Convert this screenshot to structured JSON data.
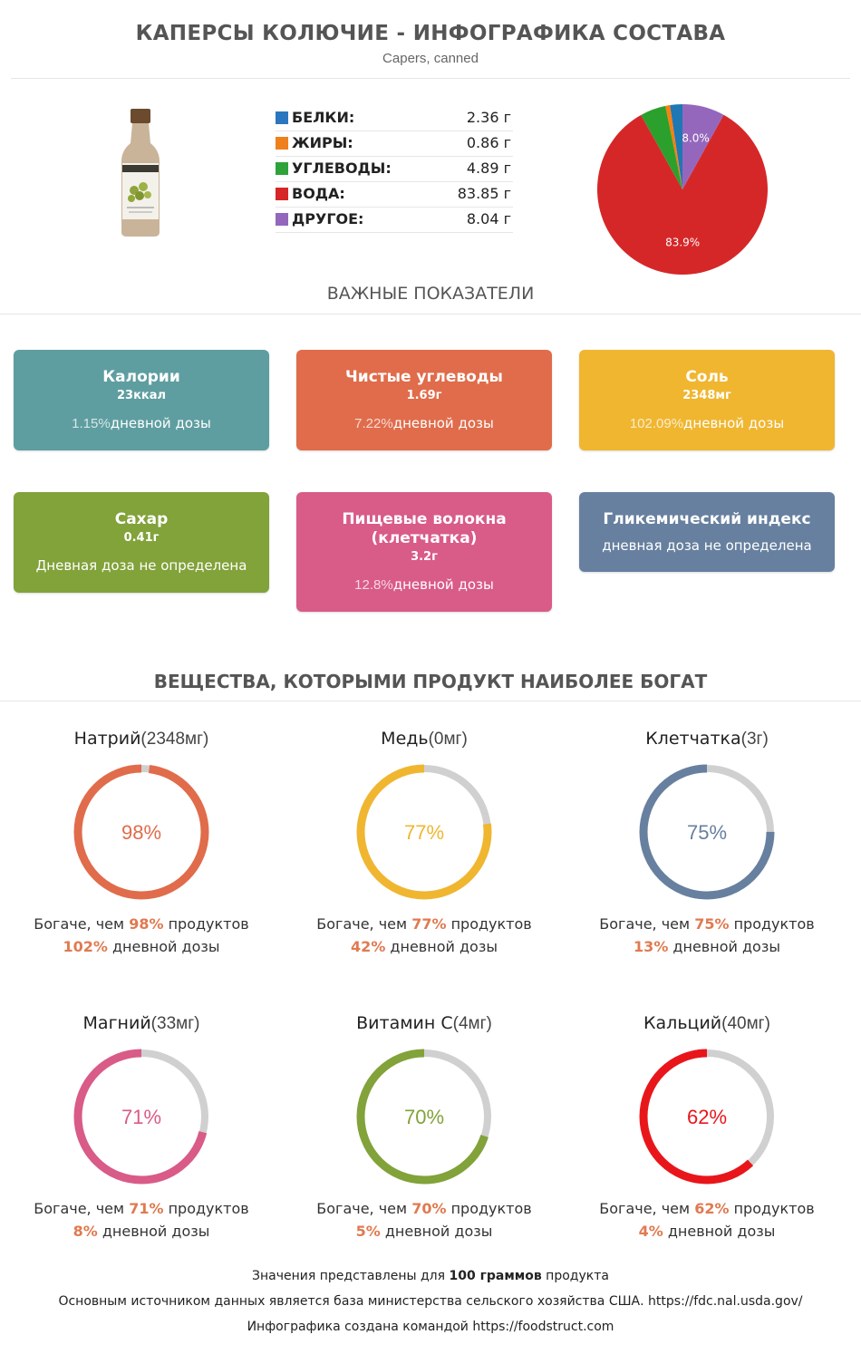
{
  "header": {
    "title": "КАПЕРСЫ КОЛЮЧИЕ - ИНФОГРАФИКА СОСТАВА",
    "subtitle": "Capers, canned"
  },
  "macros": [
    {
      "name": "БЕЛКИ:",
      "value": "2.36 г",
      "color": "#2a77c0"
    },
    {
      "name": "ЖИРЫ:",
      "value": "0.86 г",
      "color": "#f07f1e"
    },
    {
      "name": "УГЛЕВОДЫ:",
      "value": "4.89 г",
      "color": "#2ea33a"
    },
    {
      "name": "ВОДА:",
      "value": "83.85 г",
      "color": "#d62628"
    },
    {
      "name": "ДРУГОЕ:",
      "value": "8.04 г",
      "color": "#9467bd"
    }
  ],
  "chart_data": [
    {
      "type": "pie",
      "categories": [
        "БЕЛКИ",
        "ЖИРЫ",
        "УГЛЕВОДЫ",
        "ВОДА",
        "ДРУГОЕ"
      ],
      "values": [
        2.36,
        0.86,
        4.89,
        83.85,
        8.04
      ],
      "colors": [
        "#1f77b4",
        "#ff7f0e",
        "#2ca02c",
        "#d62728",
        "#9467bd"
      ],
      "slice_labels": {
        "ВОДА": "83.9%",
        "ДРУГОЕ": "8.0%"
      }
    },
    {
      "type": "donut",
      "categories": [
        "Натрий",
        "Медь",
        "Клетчатка",
        "Магний",
        "Витамин C",
        "Кальций"
      ],
      "values": [
        98,
        77,
        75,
        71,
        70,
        62
      ],
      "unit": "%"
    }
  ],
  "key_section": {
    "title": "ВАЖНЫЕ ПОКАЗАТЕЛИ"
  },
  "cards": [
    {
      "name": "Калории",
      "value": "23ккал",
      "pct": "1.15%",
      "daily": "дневной дозы",
      "color": "#5f9ea0"
    },
    {
      "name": "Чистые углеводы",
      "value": "1.69г",
      "pct": "7.22%",
      "daily": "дневной дозы",
      "color": "#e06c4b"
    },
    {
      "name": "Соль",
      "value": "2348мг",
      "pct": "102.09%",
      "daily": "дневной дозы",
      "color": "#f0b630"
    },
    {
      "name": "Сахар",
      "value": "0.41г",
      "pct": "",
      "daily": "Дневная доза не определена",
      "color": "#82a23a"
    },
    {
      "name": "Пищевые волокна (клетчатка)",
      "value": "3.2г",
      "pct": "12.8%",
      "daily": "дневной дозы",
      "color": "#d95b87"
    },
    {
      "name": "Гликемический индекс",
      "value": "",
      "pct": "",
      "daily": "дневная доза не определена",
      "color": "#67809f"
    }
  ],
  "rich_section": {
    "title": "ВЕЩЕСТВА, КОТОРЫМИ ПРОДУКТ НАИБОЛЕЕ БОГАТ"
  },
  "nutrients": [
    {
      "name": "Натрий",
      "amount": "(2348мг)",
      "pct": "98%",
      "value": 98,
      "richer_pre": "Богаче, чем ",
      "richer_post": " продуктов",
      "daily_pct": "102%",
      "daily_text": " дневной дозы",
      "color": "#e06c4b"
    },
    {
      "name": "Медь",
      "amount": "(0мг)",
      "pct": "77%",
      "value": 77,
      "richer_pre": "Богаче, чем ",
      "richer_post": " продуктов",
      "daily_pct": "42%",
      "daily_text": " дневной дозы",
      "color": "#f0b630"
    },
    {
      "name": "Клетчатка",
      "amount": "(3г)",
      "pct": "75%",
      "value": 75,
      "richer_pre": "Богаче, чем ",
      "richer_post": " продуктов",
      "daily_pct": "13%",
      "daily_text": " дневной дозы",
      "color": "#67809f"
    },
    {
      "name": "Магний",
      "amount": "(33мг)",
      "pct": "71%",
      "value": 71,
      "richer_pre": "Богаче, чем ",
      "richer_post": " продуктов",
      "daily_pct": "8%",
      "daily_text": " дневной дозы",
      "color": "#d95b87"
    },
    {
      "name": "Витамин C",
      "amount": "(4мг)",
      "pct": "70%",
      "value": 70,
      "richer_pre": "Богаче, чем ",
      "richer_post": " продуктов",
      "daily_pct": "5%",
      "daily_text": " дневной дозы",
      "color": "#82a23a"
    },
    {
      "name": "Кальций",
      "amount": "(40мг)",
      "pct": "62%",
      "value": 62,
      "richer_pre": "Богаче, чем ",
      "richer_post": " продуктов",
      "daily_pct": "4%",
      "daily_text": " дневной дозы",
      "color": "#e8161b"
    }
  ],
  "footer": {
    "line1_pre": "Значения представлены для ",
    "line1_bold": "100 граммов",
    "line1_post": " продукта",
    "line2": "Основным источником данных является база министерства сельского хозяйства США. https://fdc.nal.usda.gov/",
    "line3": "Инфографика создана командой https://foodstruct.com"
  }
}
